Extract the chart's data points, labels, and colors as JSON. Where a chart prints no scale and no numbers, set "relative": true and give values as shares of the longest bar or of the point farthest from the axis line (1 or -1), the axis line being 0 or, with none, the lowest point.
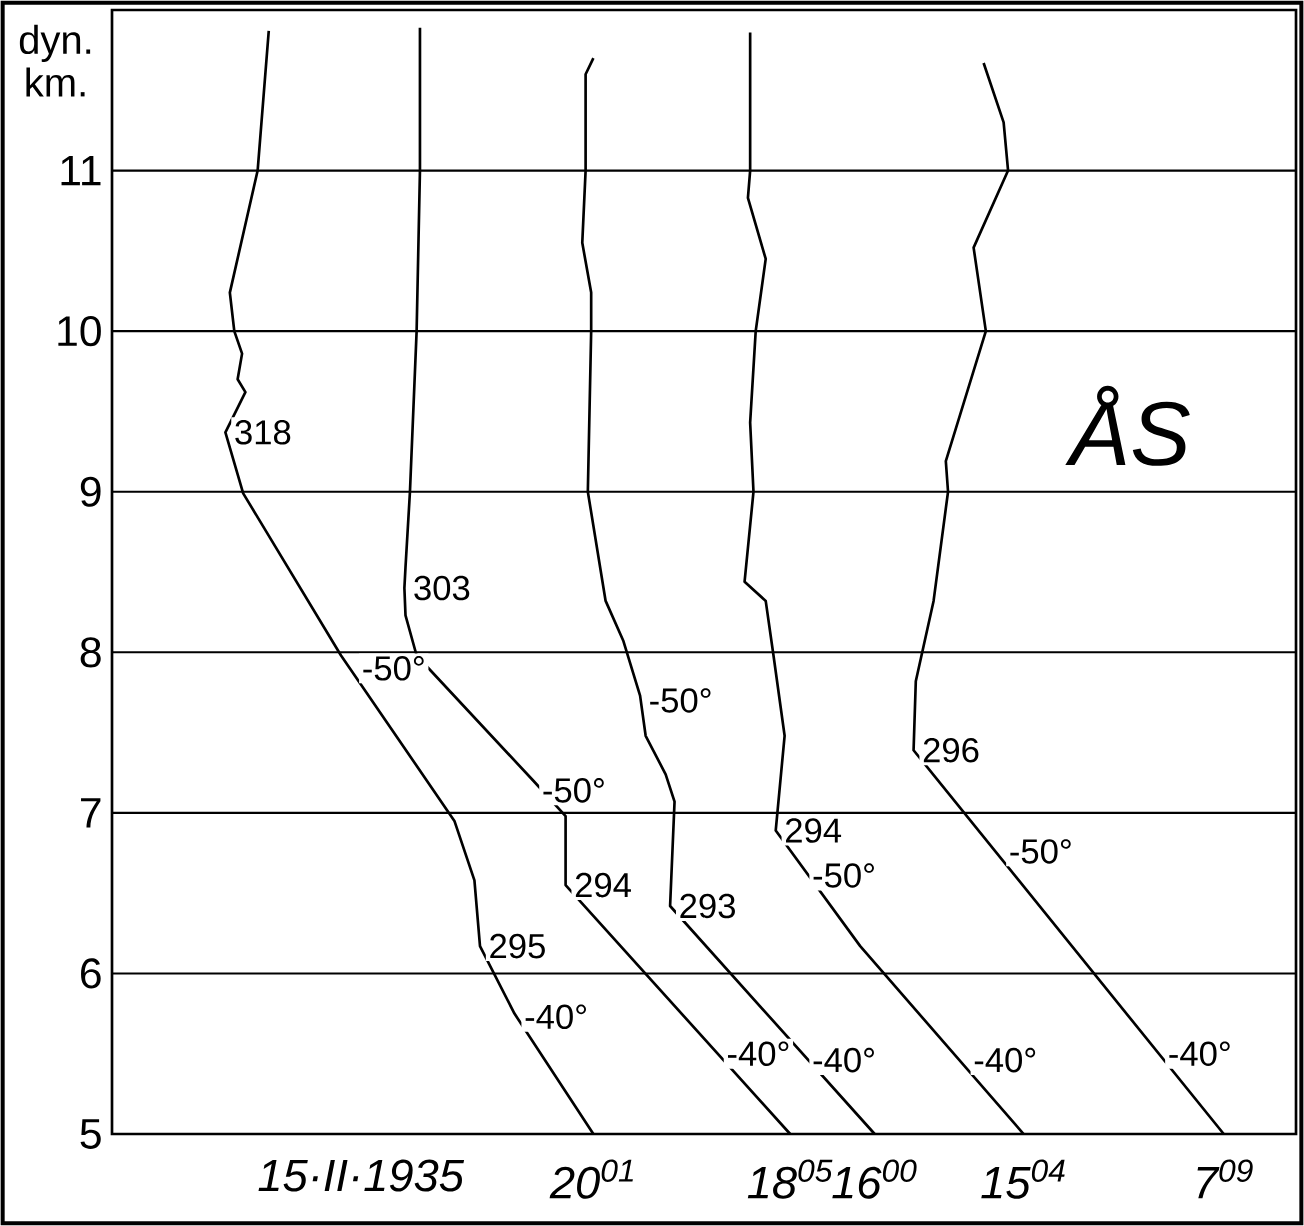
{
  "chart_data": {
    "type": "line",
    "orientation": "horizontal",
    "relative": true,
    "ylabel": "dyn. km.",
    "ylim": [
      5,
      12
    ],
    "yticks": [
      5,
      6,
      7,
      8,
      9,
      10,
      11
    ],
    "grid": "y",
    "legend": false,
    "series": [
      {
        "name": "20$^{01}$",
        "color": "#000000",
        "x": [
          11.87,
          11,
          10.24,
          10,
          9.86,
          9.7,
          9.62,
          9.37,
          8.99,
          7.98,
          6.95,
          6.58,
          6.17,
          5.75,
          5
        ],
        "values": [
          0.141,
          0.131,
          0.106,
          0.11,
          0.117,
          0.113,
          0.12,
          0.102,
          0.118,
          0.206,
          0.308,
          0.326,
          0.331,
          0.362,
          0.433
        ]
      },
      {
        "name": "18$^{05}$",
        "color": "#000000",
        "x": [
          11.89,
          11,
          10,
          9,
          8.53,
          8.4,
          8.23,
          7.98,
          7.2,
          6.98,
          6.55,
          5
        ],
        "values": [
          0.277,
          0.277,
          0.274,
          0.268,
          0.264,
          0.263,
          0.264,
          0.274,
          0.379,
          0.408,
          0.408,
          0.61
        ]
      },
      {
        "name": "16$^{00}$",
        "color": "#000000",
        "x": [
          11.7,
          11.6,
          11,
          10.55,
          10.24,
          10,
          9,
          8.32,
          8.07,
          7.73,
          7.48,
          7.24,
          7.07,
          6.42,
          5
        ],
        "values": [
          0.433,
          0.426,
          0.426,
          0.423,
          0.431,
          0.431,
          0.428,
          0.444,
          0.46,
          0.475,
          0.48,
          0.498,
          0.506,
          0.502,
          0.686
        ]
      },
      {
        "name": "15$^{04}$",
        "color": "#000000",
        "x": [
          11.86,
          11,
          10.83,
          10.45,
          10,
          9.43,
          9,
          8.44,
          8.32,
          7.98,
          7.48,
          6.89,
          6.17,
          5
        ],
        "values": [
          0.574,
          0.574,
          0.572,
          0.588,
          0.579,
          0.574,
          0.577,
          0.569,
          0.588,
          0.595,
          0.605,
          0.597,
          0.673,
          0.82
        ]
      },
      {
        "name": "7$^{09}$",
        "color": "#000000",
        "x": [
          11.67,
          11.3,
          11,
          10.52,
          10,
          9.19,
          9,
          8.32,
          7.82,
          7.39,
          5
        ],
        "values": [
          0.784,
          0.802,
          0.806,
          0.775,
          0.786,
          0.75,
          0.752,
          0.739,
          0.723,
          0.721,
          1
        ]
      }
    ],
    "annotations": [
      "15·II·1935",
      "ÅS",
      {
        "text": "318",
        "x": 0.102,
        "y": 9.37
      },
      {
        "text": "303",
        "x": 0.263,
        "y": 8.4
      },
      {
        "text": "295",
        "x": 0.331,
        "y": 6.17
      },
      {
        "text": "294",
        "x": 0.408,
        "y": 6.55
      },
      {
        "text": "293",
        "x": 0.502,
        "y": 6.42
      },
      {
        "text": "294",
        "x": 0.597,
        "y": 6.89
      },
      {
        "text": "296",
        "x": 0.721,
        "y": 7.39
      },
      {
        "text": "-50°",
        "x": 0.217,
        "y": 7.9
      },
      {
        "text": "-50°",
        "x": 0.379,
        "y": 7.14
      },
      {
        "text": "-50°",
        "x": 0.475,
        "y": 7.7
      },
      {
        "text": "-50°",
        "x": 0.622,
        "y": 6.61
      },
      {
        "text": "-50°",
        "x": 0.799,
        "y": 6.76
      },
      {
        "text": "-40°",
        "x": 0.363,
        "y": 5.73
      },
      {
        "text": "-40°",
        "x": 0.545,
        "y": 5.5
      },
      {
        "text": "-40°",
        "x": 0.622,
        "y": 5.46
      },
      {
        "text": "-40°",
        "x": 0.767,
        "y": 5.46
      },
      {
        "text": "-40°",
        "x": 0.942,
        "y": 5.5
      }
    ]
  }
}
